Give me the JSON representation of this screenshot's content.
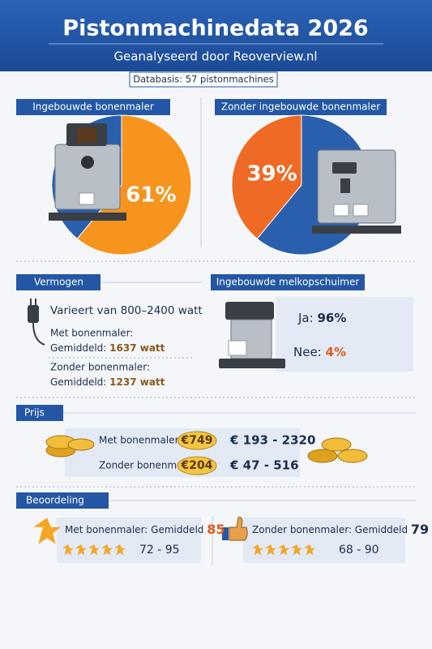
{
  "header": {
    "title": "Pistonmachinedata 2026",
    "subtitle": "Geanalyseerd door Reoverview.nl",
    "badge": "Databasis: 57 pistonmachines"
  },
  "chart_data": [
    {
      "type": "pie",
      "title": "Ingebouwde bonenmaler",
      "categories": [
        null,
        null
      ],
      "values": [
        61,
        39
      ],
      "value_labels": [
        "61%",
        null
      ],
      "colors": [
        "#f7941d",
        "#2a5fae"
      ]
    },
    {
      "type": "pie",
      "title": "Zonder ingebouwde bonenmaler",
      "categories": [
        null,
        null
      ],
      "values": [
        39,
        61
      ],
      "value_labels": [
        "39%",
        null
      ],
      "colors": [
        "#ef6a24",
        "#2a5fae"
      ]
    }
  ],
  "power": {
    "title": "Vermogen",
    "range": "Varieert van 800–2400 watt",
    "with": {
      "label": "Met bonenmaler:",
      "avg_label": "Gemiddeld:",
      "avg": "1637 watt"
    },
    "without": {
      "label": "Zonder bonenmaler:",
      "avg_label": "Gemiddeld:",
      "avg": "1237 watt"
    }
  },
  "milk": {
    "title": "Ingebouwde melkopschuimer",
    "yes": {
      "label": "Ja:",
      "value": "96%"
    },
    "no": {
      "label": "Nee:",
      "value": "4%"
    }
  },
  "price": {
    "title": "Prijs",
    "rows": [
      {
        "label": "Met bonenmaler:",
        "avg": "€749",
        "range": "€ 193 - 2320"
      },
      {
        "label": "Zonder bonenmaler:",
        "avg": "€204",
        "range": "€ 47 - 516"
      }
    ]
  },
  "rating": {
    "title": "Beoordeling",
    "items": [
      {
        "label": "Met bonenmaler: Gemiddeld",
        "avg": 85,
        "range": "72 - 95"
      },
      {
        "label": "Zonder bonenmaler: Gemiddeld",
        "avg": 79,
        "range": "68 - 90"
      }
    ]
  }
}
